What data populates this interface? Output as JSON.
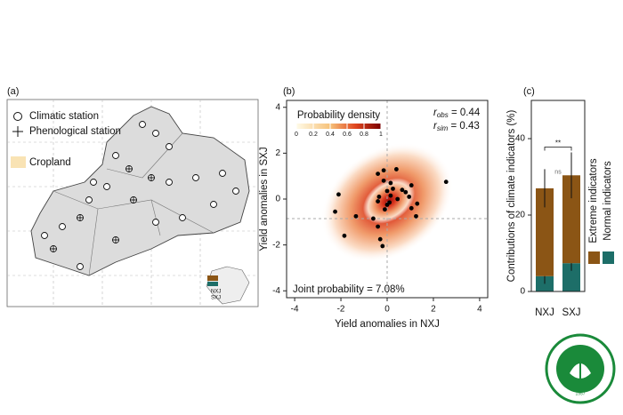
{
  "map": {
    "panel": "(a)",
    "legend": [
      "Climatic station",
      "Phenological station",
      "Cropland"
    ],
    "inset": [
      "NXJ",
      "SXJ"
    ]
  },
  "chart_data": [
    {
      "type": "scatter",
      "panel": "(b)",
      "x_label": "Yield anomalies in NXJ",
      "y_label": "Yield anomalies in SXJ",
      "x": [
        -2.1,
        -2.25,
        -1.85,
        -1.35,
        -0.6,
        -0.4,
        -0.15,
        0.4,
        0.25,
        -0.15,
        -0.35,
        -0.4,
        0,
        0.1,
        -0.1,
        0,
        0.15,
        0.65,
        0.8,
        0.95,
        1.3,
        1.05,
        0.45,
        1.05,
        1.25,
        2.55,
        -0.3,
        -0.2,
        -0.4,
        0.15
      ],
      "values": [
        0.2,
        -0.55,
        -1.6,
        -0.75,
        -0.85,
        1.1,
        1.25,
        1.3,
        0.45,
        0.8,
        0.1,
        -0.1,
        -0.25,
        -0.15,
        -0.45,
        0.35,
        0.15,
        0.4,
        0.3,
        0.1,
        -0.2,
        -0.4,
        0,
        0.6,
        -0.75,
        0.75,
        -1.75,
        -2.05,
        -1.2,
        0.7
      ],
      "color": "#000000",
      "xlim": [
        -4.35,
        4.35
      ],
      "ylim": [
        -4.3,
        4.3
      ],
      "xticks": [
        -4,
        -2,
        0,
        2,
        4
      ],
      "yticks": [
        -4,
        -2,
        0,
        2,
        4
      ],
      "reference_lines": {
        "x": 0,
        "y": -0.85
      },
      "colorbar": {
        "label": "Probability density",
        "ticks": [
          0,
          0.2,
          0.4,
          0.6,
          0.8,
          1
        ]
      },
      "annotations": [
        {
          "symbol": "r",
          "sub": "obs",
          "text": " = 0.44"
        },
        {
          "symbol": "r",
          "sub": "sim",
          "text": " = 0.43"
        },
        {
          "text": "Joint probability = 7.08%"
        }
      ]
    },
    {
      "type": "stacked-bar",
      "panel": "(c)",
      "y_label": "Contributions of climate indicators (%)",
      "categories": [
        "NXJ",
        "SXJ"
      ],
      "series": [
        {
          "name": "Normal indicators",
          "color": "#1d6e68",
          "values": [
            4,
            7.4
          ],
          "errors": [
            2,
            2
          ]
        },
        {
          "name": "Extreme indicators",
          "color": "#8b5515",
          "values": [
            23,
            23
          ],
          "errors": [
            5,
            6
          ]
        }
      ],
      "ylim": [
        0,
        50
      ],
      "yticks": [
        0,
        20,
        40
      ],
      "annotations": [
        "**",
        "ns"
      ]
    }
  ],
  "logo": {
    "year": "1957"
  }
}
